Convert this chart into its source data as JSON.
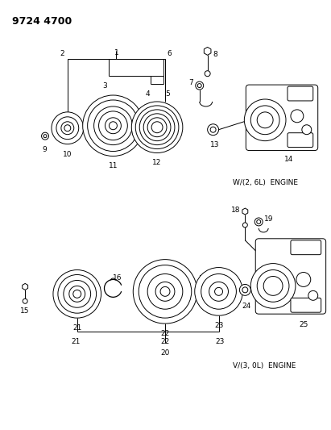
{
  "title": "9724 4700",
  "background_color": "#ffffff",
  "engine1_label": "W/(2, 6L)  ENGINE",
  "engine2_label": "V/(3, 0L)  ENGINE",
  "fig_width": 4.11,
  "fig_height": 5.33,
  "dpi": 100
}
